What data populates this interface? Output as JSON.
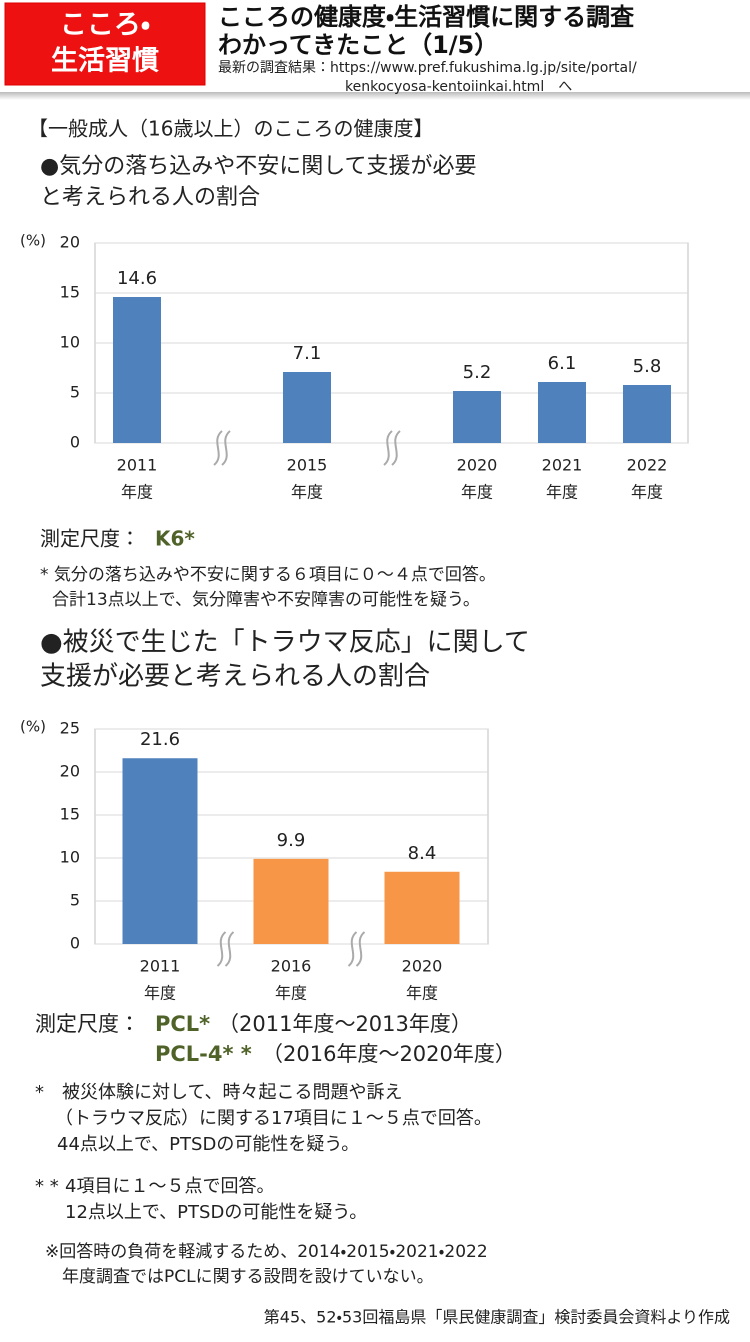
{
  "header": {
    "badge": [
      "こころ・",
      "生活習慣"
    ],
    "title": [
      "こころの健康度・生活習慣に関する調査",
      "わかってきたこと（1/5）"
    ],
    "source": [
      "最新の調査結果：https://www.pref.fukushima.lg.jp/site/portal/",
      "kenkocyosa-kentoiinkai.html　へ"
    ]
  },
  "section_title": "【一般成人（16歳以上）のこころの健康度】",
  "chart_data": [
    {
      "type": "bar",
      "title": [
        "●気分の落ち込みや不安に関して支援が必要",
        "と考えられる人の割合"
      ],
      "y_label": "(%)",
      "categories": [
        [
          "2011",
          "年度"
        ],
        [
          "2015",
          "年度"
        ],
        [
          "2020",
          "年度"
        ],
        [
          "2021",
          "年度"
        ],
        [
          "2022",
          "年度"
        ]
      ],
      "values": [
        14.6,
        7.1,
        5.2,
        6.1,
        5.8
      ],
      "colors": [
        "#4f81bd",
        "#4f81bd",
        "#4f81bd",
        "#4f81bd",
        "#4f81bd"
      ],
      "ylim": [
        0,
        20
      ],
      "yticks": [
        0,
        5,
        10,
        15,
        20
      ],
      "grid": true
    },
    {
      "type": "bar",
      "title": [
        "●被災で生じた「トラウマ反応」に関して",
        "支援が必要と考えられる人の割合"
      ],
      "y_label": "(%)",
      "categories": [
        [
          "2011",
          "年度"
        ],
        [
          "2016",
          "年度"
        ],
        [
          "2020",
          "年度"
        ]
      ],
      "values": [
        21.6,
        9.9,
        8.4
      ],
      "colors": [
        "#4f81bd",
        "#f79646",
        "#f79646"
      ],
      "ylim": [
        0,
        25
      ],
      "yticks": [
        0,
        5,
        10,
        15,
        20,
        25
      ],
      "grid": true
    }
  ],
  "scale1": {
    "label": "測定尺度：",
    "name": "K6*"
  },
  "note1": [
    "* 気分の落ち込みや不安に関する６項目に０～４点で回答。",
    "合計13点以上で、気分障害や不安障害の可能性を疑う。"
  ],
  "scale2": {
    "label": "測定尺度：",
    "items": [
      {
        "name": "PCL*",
        "period": "（2011年度～2013年度）"
      },
      {
        "name": "PCL-4* *",
        "period": "（2016年度～2020年度）"
      }
    ]
  },
  "footnotes": [
    {
      "mark": "*",
      "lines": [
        "被災体験に対して、時々起こる問題や訴え",
        "（トラウマ反応）に関する17項目に１～５点で回答。",
        "44点以上で、PTSDの可能性を疑う。"
      ]
    },
    {
      "mark": "* *",
      "lines": [
        "4項目に１～５点で回答。",
        "12点以上で、PTSDの可能性を疑う。"
      ]
    }
  ],
  "remark": [
    "※回答時の負荷を軽減するため、2014・2015・2021・2022",
    "年度調査ではPCLに関する設問を設けていない。"
  ],
  "source": "第45、52・53回福島県「県民健康調査」検討委員会資料より作成"
}
